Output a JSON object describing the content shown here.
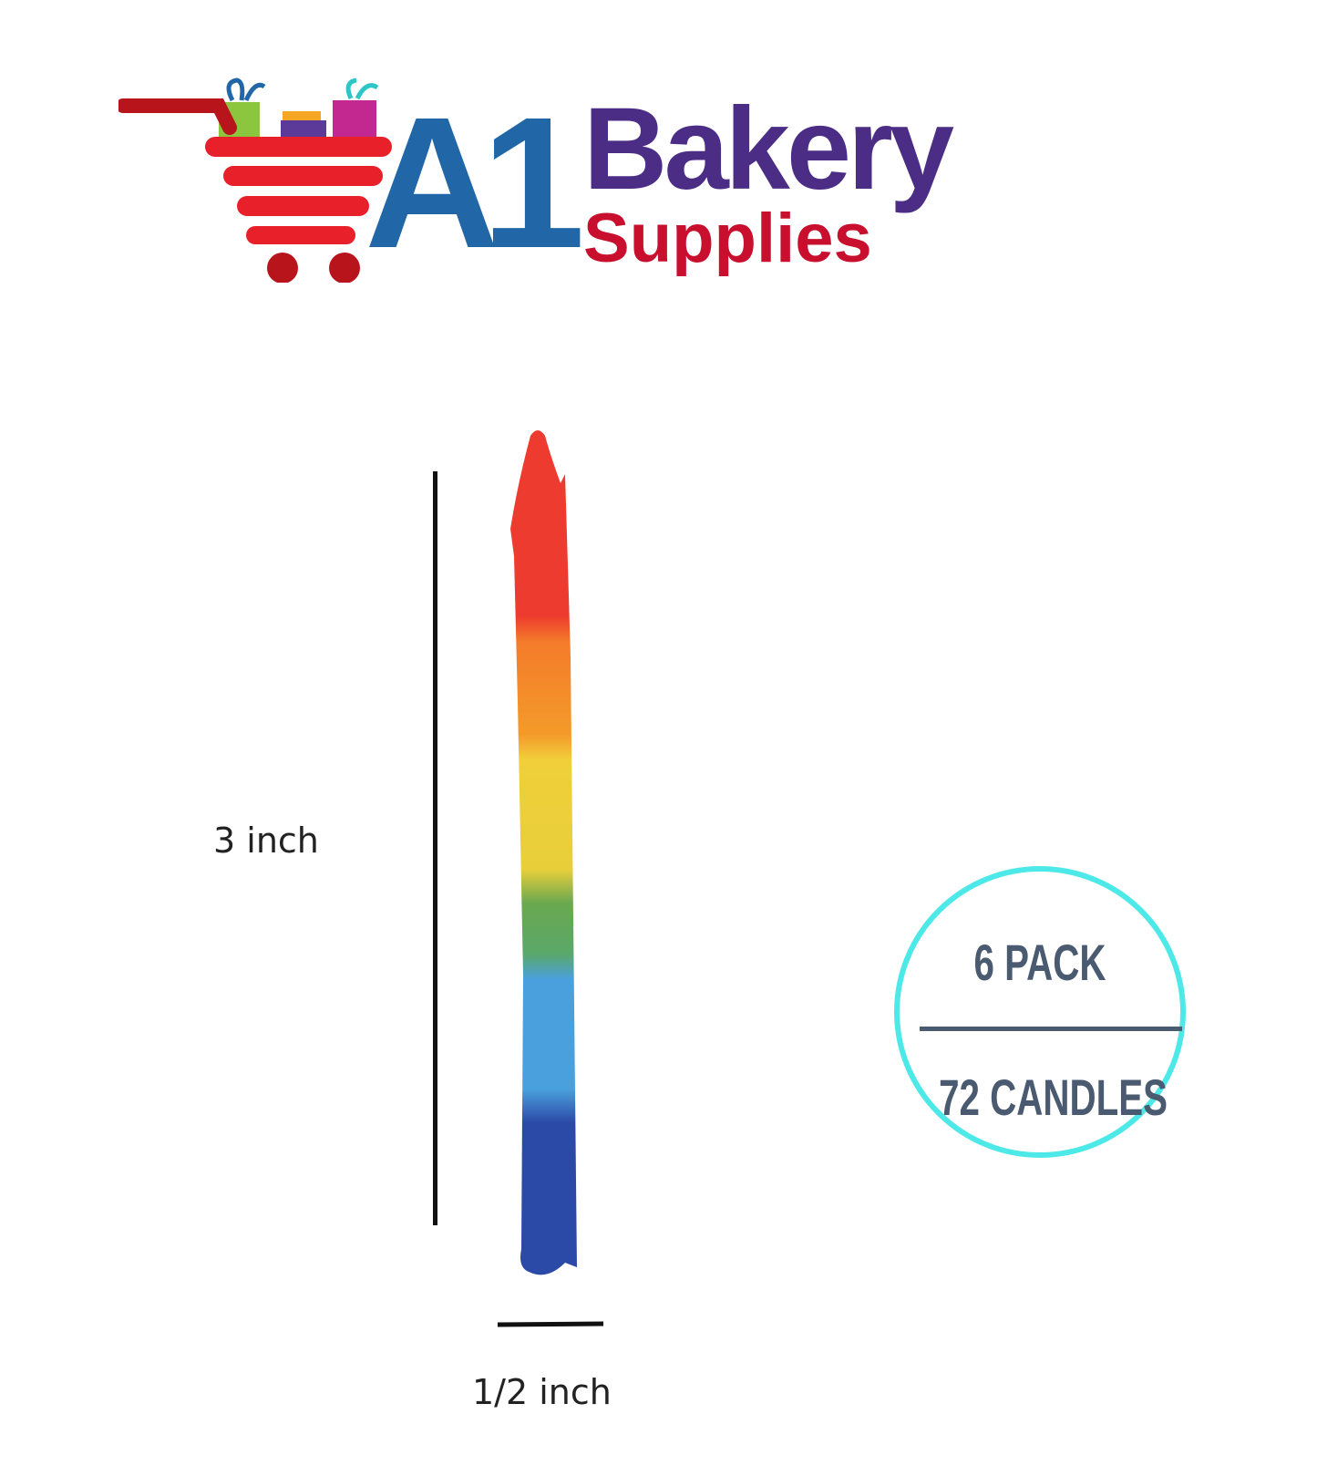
{
  "logo": {
    "brand_prefix": "A1",
    "brand_name": "Bakery",
    "brand_sub": "Supplies",
    "icon": "shopping-cart-with-gifts-icon",
    "colors": {
      "cart": "#e8202a",
      "a1": "#2167a8",
      "bakery": "#4b2d86",
      "supplies": "#c8102e"
    }
  },
  "dimensions": {
    "height_label": "3 inch",
    "width_label": "1/2 inch"
  },
  "product": {
    "image": "rainbow-candle",
    "stripe_colors": [
      "#ee3b2f",
      "#f47b2a",
      "#f0cf3a",
      "#6aa84f",
      "#4aa0dc",
      "#2b4aa8"
    ]
  },
  "badge": {
    "pack": "6 PACK",
    "count": "72 CANDLES",
    "ring_color": "#4de8e8",
    "text_color": "#4a5a70"
  }
}
